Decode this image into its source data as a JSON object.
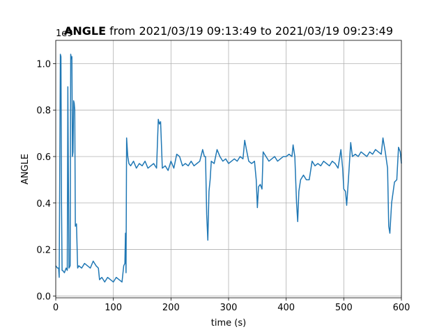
{
  "chart_data": {
    "type": "line",
    "title_bold": "ANGLE",
    "title_rest": " from 2021/03/19 09:13:49 to 2021/03/19 09:23:49",
    "x_label": "time (s)",
    "y_label": "ANGLE",
    "y_offset_text": "1e9",
    "grid": true,
    "xlim": [
      0,
      600
    ],
    "ylim": [
      -0.008,
      1.1
    ],
    "xticks": [
      0,
      100,
      200,
      300,
      400,
      500,
      600
    ],
    "yticks": [
      {
        "value": 0,
        "label": "0.0"
      },
      0.2,
      0.4,
      0.6,
      0.8,
      {
        "value": 1,
        "label": "1.0"
      }
    ],
    "x": [
      0,
      3,
      5,
      6,
      8,
      9,
      10,
      11,
      12,
      15,
      18,
      20,
      21,
      22,
      23,
      25,
      26,
      27,
      28,
      29,
      30,
      31,
      32,
      33,
      34,
      36,
      38,
      40,
      45,
      50,
      55,
      60,
      65,
      70,
      74,
      76,
      80,
      85,
      90,
      95,
      100,
      105,
      110,
      115,
      118,
      120,
      121,
      122,
      123,
      125,
      127,
      130,
      135,
      140,
      145,
      150,
      155,
      160,
      165,
      170,
      175,
      178,
      180,
      182,
      185,
      190,
      195,
      200,
      205,
      210,
      215,
      220,
      225,
      230,
      235,
      240,
      245,
      250,
      255,
      258,
      260,
      262,
      264,
      266,
      268,
      270,
      275,
      280,
      285,
      290,
      295,
      300,
      305,
      310,
      315,
      320,
      325,
      328,
      331,
      335,
      340,
      345,
      348,
      350,
      352,
      355,
      358,
      360,
      365,
      370,
      375,
      380,
      385,
      390,
      395,
      400,
      405,
      410,
      412,
      415,
      418,
      420,
      422,
      425,
      430,
      435,
      440,
      445,
      450,
      455,
      460,
      465,
      470,
      475,
      480,
      485,
      490,
      495,
      498,
      500,
      503,
      505,
      508,
      510,
      512,
      515,
      520,
      525,
      530,
      535,
      540,
      545,
      550,
      555,
      560,
      565,
      568,
      572,
      576,
      578,
      580,
      583,
      588,
      592,
      595,
      598,
      600
    ],
    "series": [
      {
        "name": "ANGLE",
        "color": "#1f77b4",
        "values": [
          0.13,
          0.12,
          0.12,
          0.08,
          1.04,
          1.03,
          0.4,
          0.11,
          0.11,
          0.1,
          0.12,
          0.11,
          0.9,
          0.5,
          0.12,
          0.13,
          1.04,
          1.02,
          1.03,
          0.6,
          0.62,
          0.84,
          0.83,
          0.8,
          0.3,
          0.31,
          0.12,
          0.13,
          0.12,
          0.14,
          0.13,
          0.12,
          0.15,
          0.13,
          0.12,
          0.07,
          0.08,
          0.06,
          0.08,
          0.07,
          0.06,
          0.08,
          0.07,
          0.06,
          0.13,
          0.14,
          0.27,
          0.1,
          0.68,
          0.6,
          0.57,
          0.56,
          0.58,
          0.55,
          0.57,
          0.56,
          0.58,
          0.55,
          0.56,
          0.57,
          0.55,
          0.76,
          0.74,
          0.75,
          0.55,
          0.56,
          0.54,
          0.58,
          0.55,
          0.61,
          0.6,
          0.56,
          0.57,
          0.56,
          0.58,
          0.56,
          0.57,
          0.58,
          0.63,
          0.6,
          0.6,
          0.35,
          0.24,
          0.45,
          0.5,
          0.58,
          0.57,
          0.63,
          0.6,
          0.58,
          0.59,
          0.57,
          0.58,
          0.59,
          0.58,
          0.6,
          0.59,
          0.67,
          0.63,
          0.58,
          0.57,
          0.58,
          0.5,
          0.38,
          0.47,
          0.48,
          0.46,
          0.62,
          0.6,
          0.58,
          0.59,
          0.6,
          0.58,
          0.59,
          0.6,
          0.6,
          0.61,
          0.6,
          0.65,
          0.6,
          0.4,
          0.32,
          0.45,
          0.5,
          0.52,
          0.5,
          0.5,
          0.58,
          0.56,
          0.57,
          0.56,
          0.58,
          0.57,
          0.56,
          0.58,
          0.57,
          0.55,
          0.63,
          0.55,
          0.46,
          0.45,
          0.39,
          0.5,
          0.58,
          0.66,
          0.6,
          0.61,
          0.6,
          0.62,
          0.61,
          0.6,
          0.62,
          0.61,
          0.63,
          0.62,
          0.61,
          0.68,
          0.62,
          0.55,
          0.3,
          0.27,
          0.4,
          0.49,
          0.5,
          0.64,
          0.62,
          0.57
        ]
      }
    ]
  }
}
